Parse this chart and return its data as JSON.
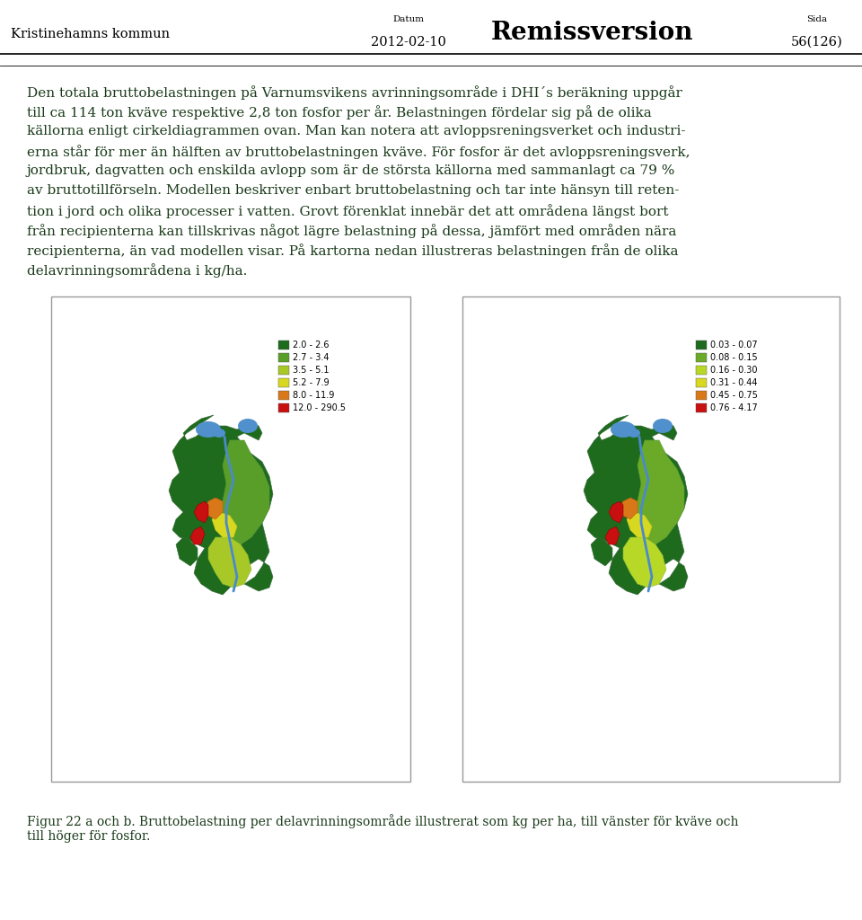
{
  "header_left": "Kristinehamns kommun",
  "header_center_label": "Datum",
  "header_center_value": "2012-02-10",
  "header_title": "Remissversion",
  "header_right_label": "Sida",
  "header_right_value": "56(126)",
  "body_lines": [
    "Den totala bruttobelastningen på Varnumsvikens avrinningsområde i DHI´s beräkning uppgår",
    "till ca 114 ton kväve respektive 2,8 ton fosfor per år. Belastningen fördelar sig på de olika",
    "källorna enligt cirkeldiagrammen ovan. Man kan notera att avloppsreningsverket och industri-",
    "erna står för mer än hälften av bruttobelastningen kväve. För fosfor är det avloppsreningsverk,",
    "jordbruk, dagvatten och enskilda avlopp som är de största källorna med sammanlagt ca 79 %",
    "av bruttotillförseln. Modellen beskriver enbart bruttobelastning och tar inte hänsyn till reten-",
    "tion i jord och olika processer i vatten. Grovt förenklat innebär det att områdena längst bort",
    "från recipienterna kan tillskrivas något lägre belastning på dessa, jämfört med områden nära",
    "recipienterna, än vad modellen visar. På kartorna nedan illustreras belastningen från de olika",
    "delavrinningsområdena i kg/ha."
  ],
  "caption_line1": "Figur 22 a och b. Bruttobelastning per delavrinningsområde illustrerat som kg per ha, till vänster för kväve och",
  "caption_line2": "till höger för fosfor.",
  "legend_left": [
    {
      "label": "2.0 - 2.6",
      "color": "#1e6b1e"
    },
    {
      "label": "2.7 - 3.4",
      "color": "#5a9e2a"
    },
    {
      "label": "3.5 - 5.1",
      "color": "#a8c828"
    },
    {
      "label": "5.2 - 7.9",
      "color": "#d8d820"
    },
    {
      "label": "8.0 - 11.9",
      "color": "#d87818"
    },
    {
      "label": "12.0 - 290.5",
      "color": "#c81010"
    }
  ],
  "legend_right": [
    {
      "label": "0.03 - 0.07",
      "color": "#1e6b1e"
    },
    {
      "label": "0.08 - 0.15",
      "color": "#6aaa28"
    },
    {
      "label": "0.16 - 0.30",
      "color": "#b8d828"
    },
    {
      "label": "0.31 - 0.44",
      "color": "#d8d820"
    },
    {
      "label": "0.45 - 0.75",
      "color": "#d87818"
    },
    {
      "label": "0.76 - 4.17",
      "color": "#c81010"
    }
  ],
  "text_color": "#2a2a2a",
  "dark_text_color": "#1a3a1a",
  "background_color": "#ffffff",
  "river_color": "#4a8acc",
  "water_color": "#5090cc",
  "box_edge_color": "#999999"
}
